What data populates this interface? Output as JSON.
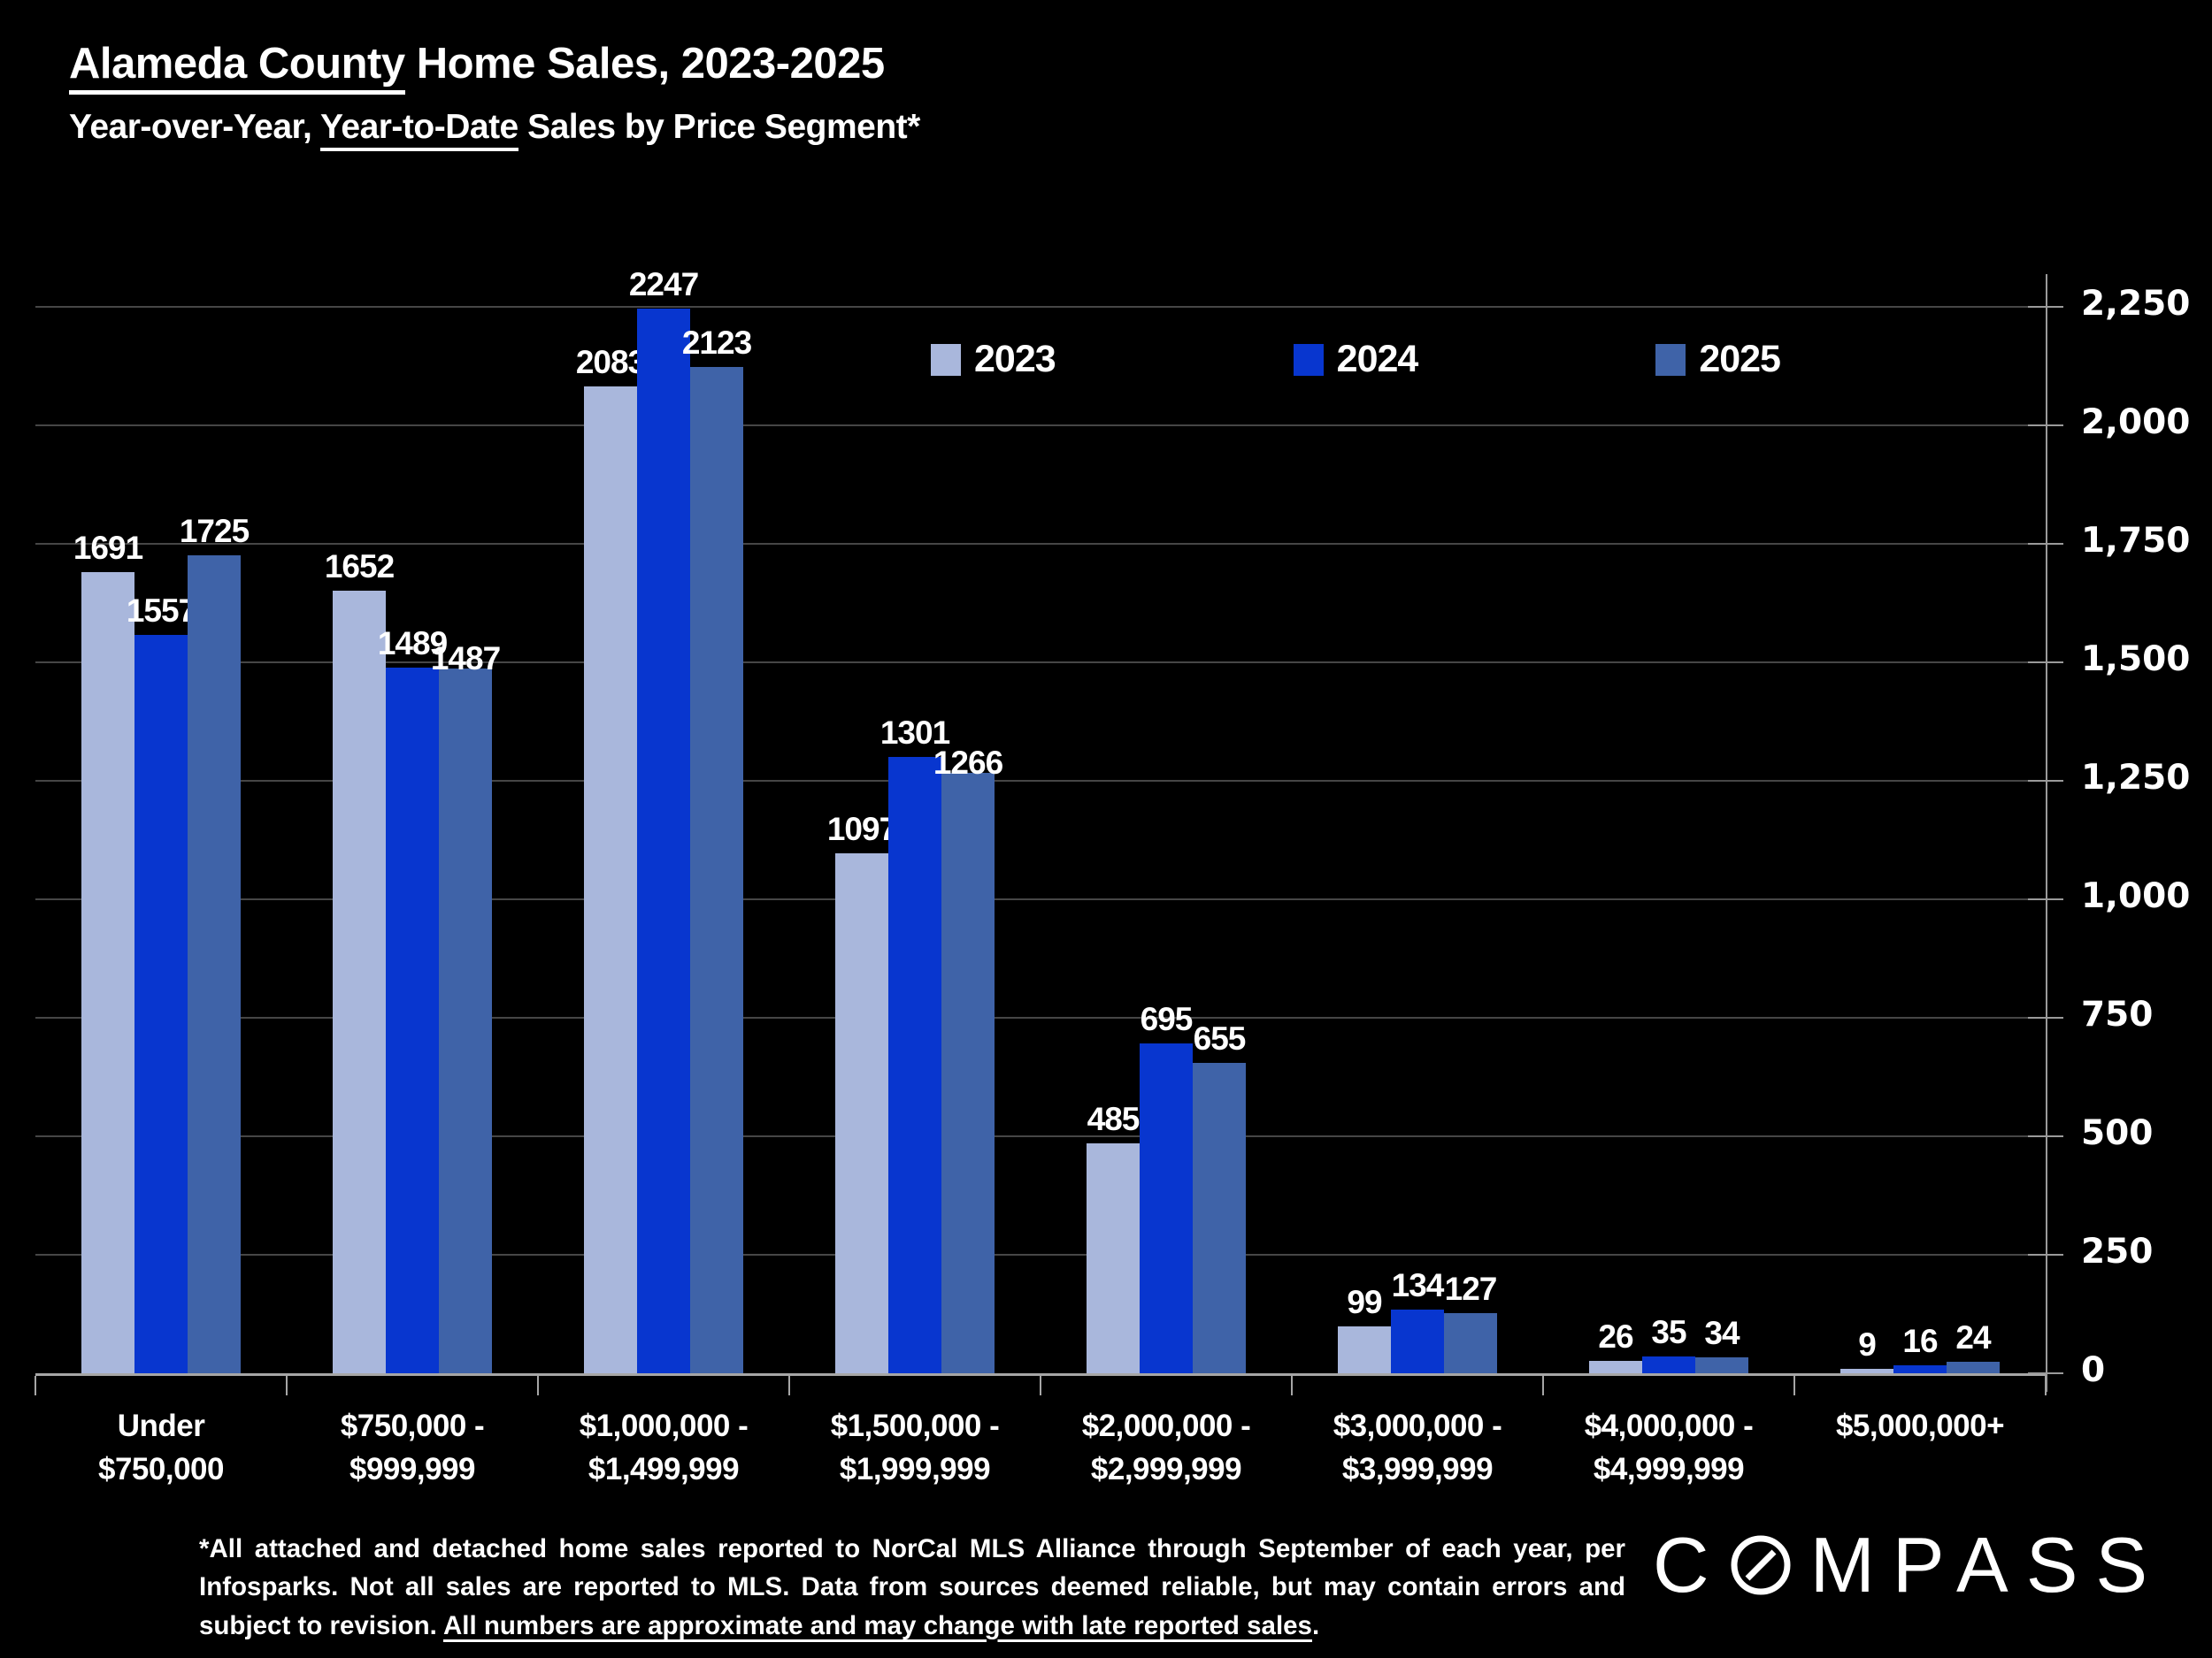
{
  "header": {
    "title_underlined": "Alameda County",
    "title_rest": " Home Sales, 2023-2025",
    "subtitle_pre": "Year-over-Year, ",
    "subtitle_underlined": "Year-to-Date",
    "subtitle_post": " Sales by Price Segment*"
  },
  "chart_data": {
    "type": "bar",
    "title": "Alameda County Home Sales, 2023-2025",
    "subtitle": "Year-over-Year, Year-to-Date Sales by Price Segment*",
    "categories": [
      [
        "Under",
        "$750,000"
      ],
      [
        "$750,000 -",
        "$999,999"
      ],
      [
        "$1,000,000 -",
        "$1,499,999"
      ],
      [
        "$1,500,000 -",
        "$1,999,999"
      ],
      [
        "$2,000,000 -",
        "$2,999,999"
      ],
      [
        "$3,000,000 -",
        "$3,999,999"
      ],
      [
        "$4,000,000 -",
        "$4,999,999"
      ],
      [
        "$5,000,000+"
      ]
    ],
    "series": [
      {
        "name": "2023",
        "color": "#a9b7dc",
        "values": [
          1691,
          1652,
          2083,
          1097,
          485,
          99,
          26,
          9
        ]
      },
      {
        "name": "2024",
        "color": "#0836cf",
        "values": [
          1557,
          1489,
          2247,
          1301,
          695,
          134,
          35,
          16
        ]
      },
      {
        "name": "2025",
        "color": "#3f63a8",
        "values": [
          1725,
          1487,
          2123,
          1266,
          655,
          127,
          34,
          24
        ]
      }
    ],
    "ylim": [
      0,
      2250
    ],
    "ytick_step": 250,
    "ytick_labels": [
      "0",
      "250",
      "500",
      "750",
      "1,000",
      "1,250",
      "1,500",
      "1,750",
      "2,000",
      "2,250"
    ],
    "grid": true,
    "legend_position": "top-center",
    "colors": {
      "background": "#000000",
      "gridline": "#464646",
      "axis": "#a6a6a6",
      "yaxis": "#9a9a9a",
      "text": "#ffffff"
    }
  },
  "footnote": {
    "text_main": "*All attached and detached home sales reported to NorCal MLS Alliance through September of each year, per Infosparks. Not all sales are reported to MLS. Data from sources deemed reliable, but may contain errors and subject to revision. ",
    "text_underlined": "All numbers are approximate and may change with late reported sales",
    "text_end": "."
  },
  "logo": {
    "brand_first_letter": "C",
    "brand_rest": "MPASS",
    "brand_full": "COMPASS"
  }
}
